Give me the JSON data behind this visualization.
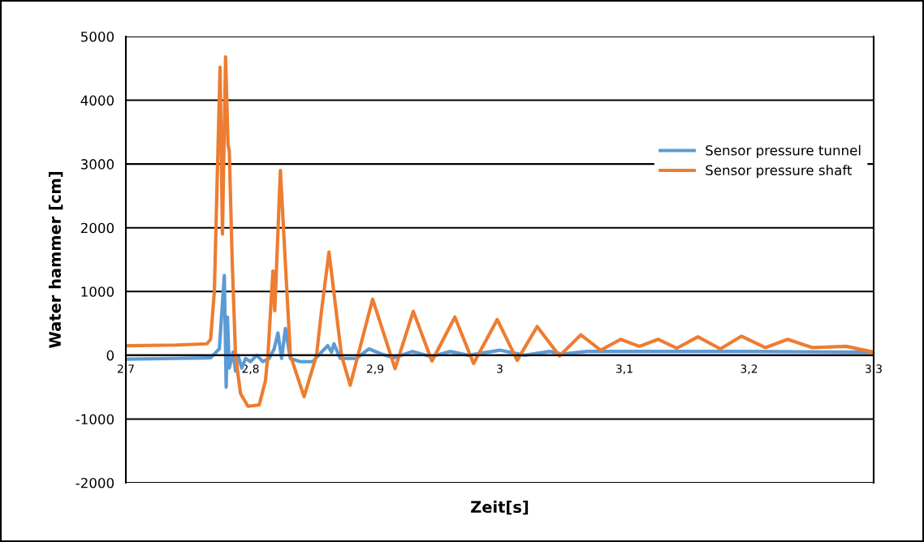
{
  "chart_data": {
    "type": "line",
    "xlabel": "Zeit[s]",
    "ylabel": "Water hammer [cm]",
    "xlim": [
      2.7,
      3.3
    ],
    "xticks": [
      {
        "value": 2.7,
        "label": "2,7"
      },
      {
        "value": 2.8,
        "label": "2,8"
      },
      {
        "value": 2.9,
        "label": "2,9"
      },
      3,
      {
        "value": 3.1,
        "label": "3,1"
      },
      {
        "value": 3.2,
        "label": "3,2"
      },
      {
        "value": 3.3,
        "label": "3,3"
      }
    ],
    "ylim": [
      -2000,
      5000
    ],
    "yticks": [
      -2000,
      -1000,
      0,
      1000,
      2000,
      3000,
      4000,
      5000
    ],
    "grid": "y",
    "legend": "right",
    "marker": "none",
    "line_style": "solid",
    "series": [
      {
        "name": "Sensor pressure tunnel",
        "color": "#5b9bd5",
        "x": [
          2.7,
          2.74,
          2.768,
          2.775,
          2.779,
          2.7805,
          2.7815,
          2.783,
          2.786,
          2.788,
          2.79,
          2.793,
          2.796,
          2.8,
          2.805,
          2.81,
          2.815,
          2.819,
          2.822,
          2.825,
          2.828,
          2.832,
          2.84,
          2.85,
          2.857,
          2.862,
          2.865,
          2.867,
          2.872,
          2.885,
          2.895,
          2.905,
          2.915,
          2.93,
          2.945,
          2.96,
          2.975,
          3.0,
          3.02,
          3.04,
          3.05,
          3.07,
          3.2,
          3.28,
          3.3
        ],
        "values": [
          -60,
          -50,
          -40,
          100,
          1250,
          -500,
          600,
          -200,
          50,
          -250,
          0,
          -200,
          -50,
          -100,
          0,
          -100,
          -50,
          100,
          350,
          -50,
          420,
          -50,
          -100,
          -100,
          50,
          150,
          50,
          180,
          -50,
          -50,
          100,
          20,
          -40,
          60,
          -20,
          60,
          0,
          80,
          0,
          60,
          20,
          60,
          60,
          50,
          50
        ]
      },
      {
        "name": "Sensor pressure shaft",
        "color": "#ed7d31",
        "x": [
          2.7,
          2.74,
          2.765,
          2.768,
          2.771,
          2.7756,
          2.7775,
          2.78,
          2.782,
          2.783,
          2.7853,
          2.788,
          2.792,
          2.798,
          2.807,
          2.812,
          2.814,
          2.818,
          2.8195,
          2.824,
          2.827,
          2.832,
          2.843,
          2.853,
          2.857,
          2.863,
          2.873,
          2.88,
          2.898,
          2.916,
          2.9306,
          2.9456,
          2.964,
          2.979,
          2.998,
          3.014,
          3.03,
          3.048,
          3.065,
          3.081,
          3.097,
          3.112,
          3.127,
          3.142,
          3.159,
          3.177,
          3.194,
          3.213,
          3.231,
          3.251,
          3.278,
          3.3
        ],
        "values": [
          150,
          160,
          180,
          250,
          1000,
          4520,
          1900,
          4680,
          3300,
          3200,
          1500,
          0,
          -600,
          -800,
          -780,
          -400,
          0,
          1320,
          700,
          2900,
          1800,
          0,
          -650,
          0,
          700,
          1620,
          0,
          -470,
          880,
          -210,
          690,
          -90,
          600,
          -130,
          560,
          -80,
          450,
          -10,
          320,
          80,
          250,
          140,
          250,
          110,
          290,
          100,
          300,
          120,
          250,
          120,
          140,
          50
        ]
      }
    ]
  }
}
